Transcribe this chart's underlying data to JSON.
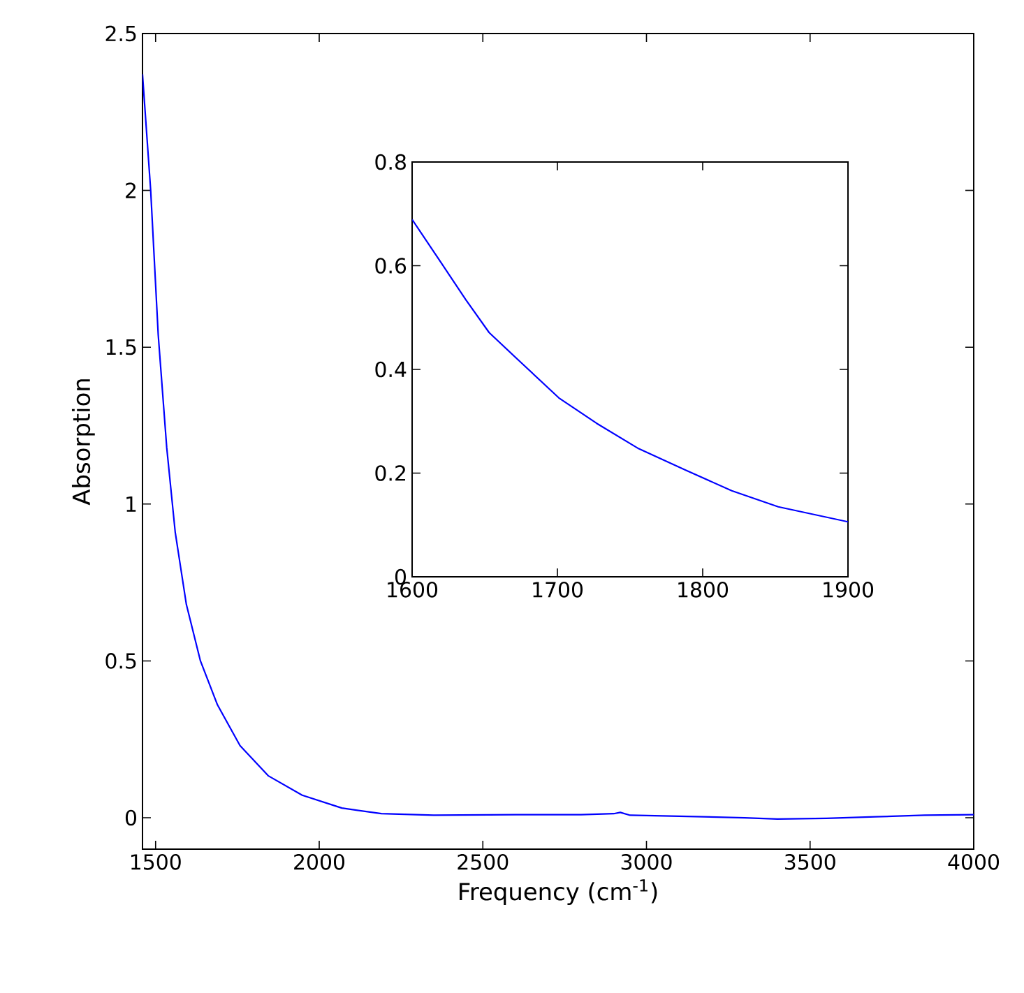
{
  "chart_data": [
    {
      "type": "line",
      "xlabel": "Frequency (cm$^{-1}$)",
      "ylabel": "Absorption",
      "xlim": [
        1460,
        4000
      ],
      "ylim": [
        -0.1,
        2.5
      ],
      "xticks": [
        1500,
        2000,
        2500,
        3000,
        3500,
        4000
      ],
      "yticks": [
        0,
        0.5,
        1,
        1.5,
        2,
        2.5
      ],
      "grid": false,
      "series": [
        {
          "color": "#0000ff",
          "x": [
            1460,
            1485,
            1508,
            1534,
            1560,
            1594,
            1637,
            1689,
            1758,
            1844,
            1948,
            2069,
            2190,
            2350,
            2600,
            2800,
            2900,
            2920,
            2950,
            3100,
            3300,
            3400,
            3550,
            3700,
            3850,
            4000
          ],
          "values": [
            2.37,
            2.0,
            1.54,
            1.18,
            0.91,
            0.68,
            0.5,
            0.36,
            0.23,
            0.134,
            0.072,
            0.031,
            0.013,
            0.008,
            0.01,
            0.01,
            0.013,
            0.017,
            0.008,
            0.005,
            0.0,
            -0.004,
            -0.002,
            0.003,
            0.008,
            0.01
          ]
        }
      ]
    },
    {
      "type": "line",
      "xlim": [
        1600,
        1900
      ],
      "ylim": [
        0,
        0.8
      ],
      "xticks": [
        1600,
        1700,
        1800,
        1900
      ],
      "yticks": [
        0,
        0.2,
        0.4,
        0.6,
        0.8
      ],
      "grid": false,
      "series": [
        {
          "color": "#0000ff",
          "x": [
            1600,
            1618,
            1637,
            1653,
            1675,
            1701,
            1727,
            1756,
            1788,
            1820,
            1852,
            1900
          ],
          "values": [
            0.689,
            0.614,
            0.534,
            0.471,
            0.413,
            0.345,
            0.296,
            0.247,
            0.206,
            0.166,
            0.135,
            0.106
          ]
        }
      ]
    }
  ]
}
